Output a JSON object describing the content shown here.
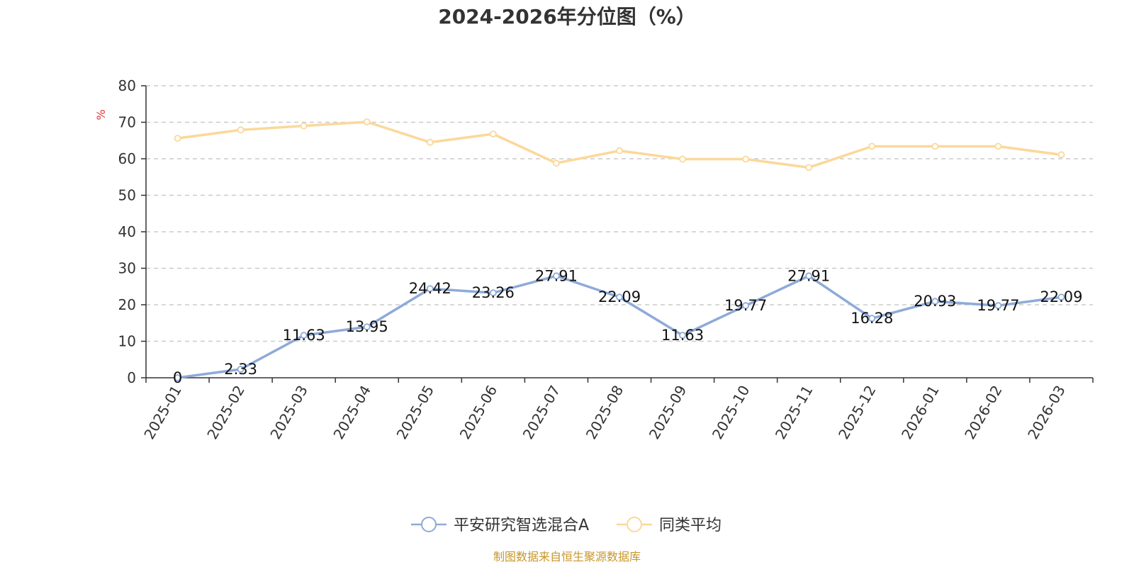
{
  "chart_data": {
    "type": "line",
    "title": "2024-2026年分位图（%）",
    "ylabel": "%",
    "ylim": [
      0,
      80
    ],
    "yticks": [
      0,
      10,
      20,
      30,
      40,
      50,
      60,
      70,
      80
    ],
    "grid": true,
    "legend_position": "bottom",
    "categories": [
      "2025-01",
      "2025-02",
      "2025-03",
      "2025-04",
      "2025-05",
      "2025-06",
      "2025-07",
      "2025-08",
      "2025-09",
      "2025-10",
      "2025-11",
      "2025-12",
      "2026-01",
      "2026-02",
      "2026-03"
    ],
    "series": [
      {
        "name": "平安研究智选混合A",
        "color": "#8eaad8",
        "values": [
          0,
          2.33,
          11.63,
          13.95,
          24.42,
          23.26,
          27.91,
          22.09,
          11.63,
          19.77,
          27.91,
          16.28,
          20.93,
          19.77,
          22.09
        ],
        "labels": [
          "0",
          "2.33",
          "11.63",
          "13.95",
          "24.42",
          "23.26",
          "27.91",
          "22.09",
          "11.63",
          "19.77",
          "27.91",
          "16.28",
          "20.93",
          "19.77",
          "22.09"
        ]
      },
      {
        "name": "同类平均",
        "color": "#fbd89a",
        "values": [
          65.6,
          67.9,
          69.0,
          70.1,
          64.5,
          66.8,
          58.8,
          62.2,
          59.9,
          59.9,
          57.6,
          63.4,
          63.4,
          63.4,
          61.1
        ]
      }
    ],
    "source": "制图数据来自恒生聚源数据库",
    "colors": {
      "axis": "#333333",
      "grid": "#cccccc",
      "unit": "#e8312f",
      "source": "#c8962a"
    }
  }
}
